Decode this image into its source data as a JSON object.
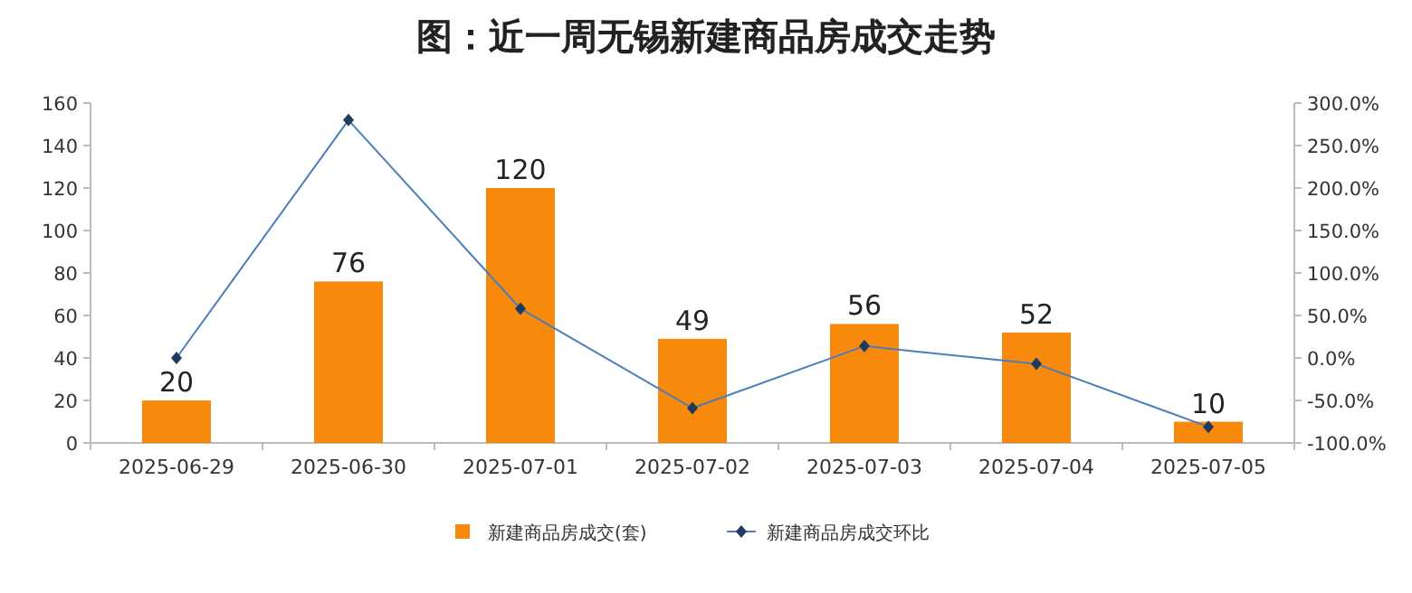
{
  "chart_data": {
    "type": "bar",
    "title": "图：近一周无锡新建商品房成交走势",
    "categories": [
      "2025-06-29",
      "2025-06-30",
      "2025-07-01",
      "2025-07-02",
      "2025-07-03",
      "2025-07-04",
      "2025-07-05"
    ],
    "series": [
      {
        "name": "新建商品房成交(套)",
        "color": "#f7890c",
        "values": [
          20,
          76,
          120,
          49,
          56,
          52,
          10
        ],
        "value_labels": [
          "20",
          "76",
          "120",
          "49",
          "56",
          "52",
          "10"
        ]
      },
      {
        "name": "新建商品房成交环比",
        "type": "line",
        "axis": "y2",
        "color": "#4a7ebb",
        "marker": "diamond",
        "values": [
          0,
          280,
          58,
          -59,
          14,
          -7,
          -81
        ]
      }
    ],
    "ylim": [
      0,
      160
    ],
    "yticks": [
      0,
      20,
      40,
      60,
      80,
      100,
      120,
      140,
      160
    ],
    "y2lim": [
      -100,
      300
    ],
    "y2ticks": [
      {
        "value": -100,
        "label": "-100.0%"
      },
      {
        "value": -50,
        "label": "-50.0%"
      },
      {
        "value": 0,
        "label": "0.0%"
      },
      {
        "value": 50,
        "label": "50.0%"
      },
      {
        "value": 100,
        "label": "100.0%"
      },
      {
        "value": 150,
        "label": "150.0%"
      },
      {
        "value": 200,
        "label": "200.0%"
      },
      {
        "value": 250,
        "label": "250.0%"
      },
      {
        "value": 300,
        "label": "300.0%"
      }
    ],
    "legend": "bottom"
  }
}
